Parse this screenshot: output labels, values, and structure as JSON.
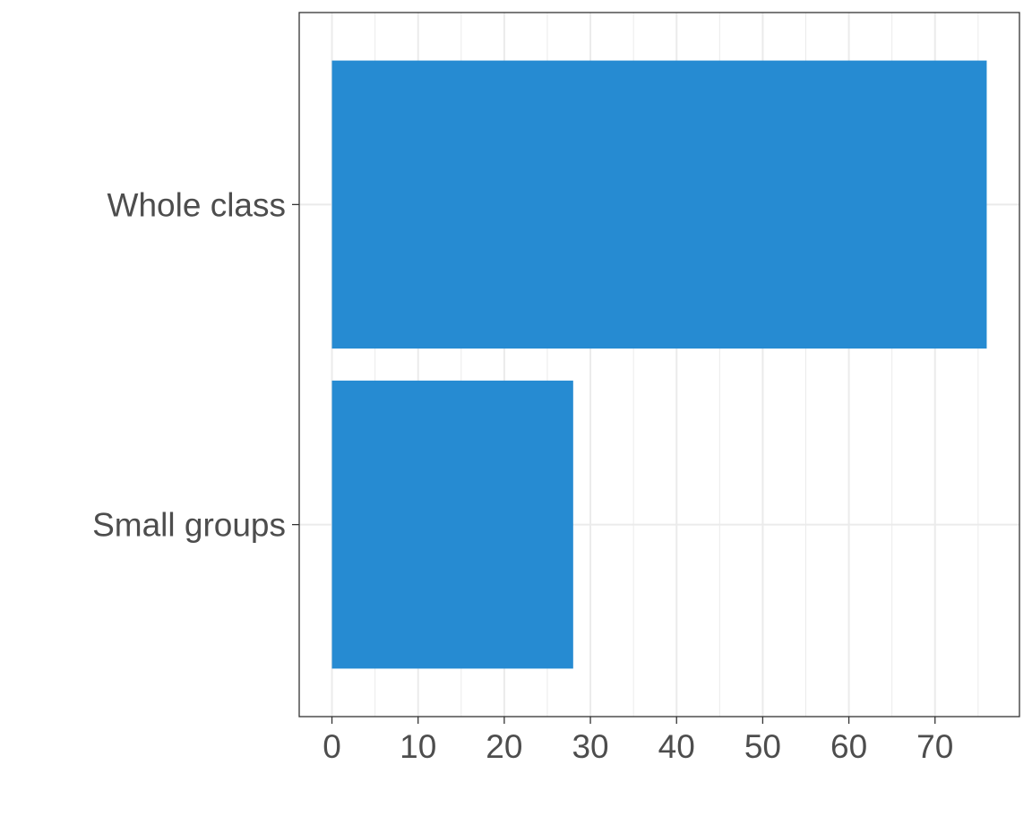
{
  "chart_data": {
    "type": "bar",
    "orientation": "horizontal",
    "categories": [
      "Whole class",
      "Small groups"
    ],
    "values": [
      76,
      28
    ],
    "title": "",
    "xlabel": "",
    "ylabel": "",
    "xlim": [
      -3.8,
      79.8
    ],
    "x_ticks": [
      0,
      10,
      20,
      30,
      40,
      50,
      60,
      70
    ],
    "x_tick_labels": [
      "0",
      "10",
      "20",
      "30",
      "40",
      "50",
      "60",
      "70"
    ],
    "grid": true,
    "legend": "none",
    "colors": {
      "bar": "#268bd2",
      "grid": "#ebebeb",
      "panel_border": "#333333",
      "tick_label": "#4d4d4d"
    }
  }
}
